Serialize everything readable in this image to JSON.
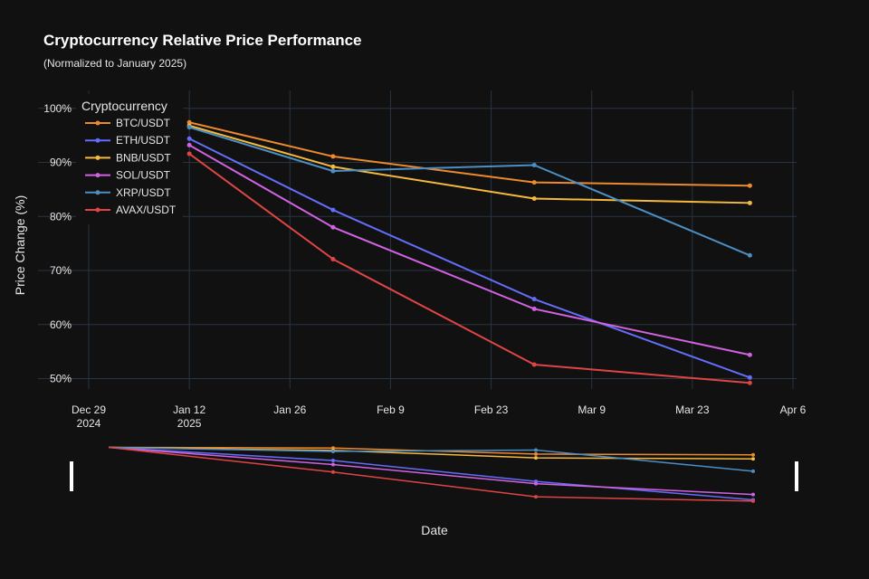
{
  "chart_data": {
    "type": "line",
    "title": "Cryptocurrency Relative Price Performance",
    "subtitle": "(Normalized to January 2025)",
    "xlabel": "Date",
    "ylabel": "Price Change (%)",
    "legend_title": "Cryptocurrency",
    "legend_position": "top-left",
    "grid": true,
    "range_slider": true,
    "x_ticks": [
      {
        "date": "2024-12-29",
        "label": [
          "Dec 29",
          "2024"
        ]
      },
      {
        "date": "2025-01-12",
        "label": [
          "Jan 12",
          "2025"
        ]
      },
      {
        "date": "2025-01-26",
        "label": [
          "Jan 26"
        ]
      },
      {
        "date": "2025-02-09",
        "label": [
          "Feb 9"
        ]
      },
      {
        "date": "2025-02-23",
        "label": [
          "Feb 23"
        ]
      },
      {
        "date": "2025-03-09",
        "label": [
          "Mar 9"
        ]
      },
      {
        "date": "2025-03-23",
        "label": [
          "Mar 23"
        ]
      },
      {
        "date": "2025-04-06",
        "label": [
          "Apr 6"
        ]
      }
    ],
    "y_ticks": [
      {
        "value": 50,
        "label": "50%"
      },
      {
        "value": 60,
        "label": "60%"
      },
      {
        "value": 70,
        "label": "70%"
      },
      {
        "value": 80,
        "label": "80%"
      },
      {
        "value": 90,
        "label": "90%"
      },
      {
        "value": 100,
        "label": "100%"
      }
    ],
    "xlim": [
      "2024-12-27",
      "2025-04-06"
    ],
    "ylim": [
      48,
      103.5
    ],
    "x": [
      "2025-01-12",
      "2025-02-01",
      "2025-03-01",
      "2025-03-31"
    ],
    "series": [
      {
        "name": "BTC/USDT",
        "color": "#ee8a2e",
        "values": [
          97.4,
          91.1,
          86.3,
          85.7
        ]
      },
      {
        "name": "ETH/USDT",
        "color": "#636efa",
        "values": [
          94.4,
          81.2,
          64.7,
          50.2
        ]
      },
      {
        "name": "BNB/USDT",
        "color": "#f5b93d",
        "values": [
          96.8,
          89.2,
          83.3,
          82.5
        ]
      },
      {
        "name": "SOL/USDT",
        "color": "#d262e3",
        "values": [
          93.2,
          78.0,
          62.9,
          54.4
        ]
      },
      {
        "name": "XRP/USDT",
        "color": "#4c8fc4",
        "values": [
          96.5,
          88.4,
          89.5,
          72.8
        ]
      },
      {
        "name": "AVAX/USDT",
        "color": "#e04545",
        "values": [
          91.6,
          72.1,
          52.6,
          49.2
        ]
      }
    ]
  }
}
